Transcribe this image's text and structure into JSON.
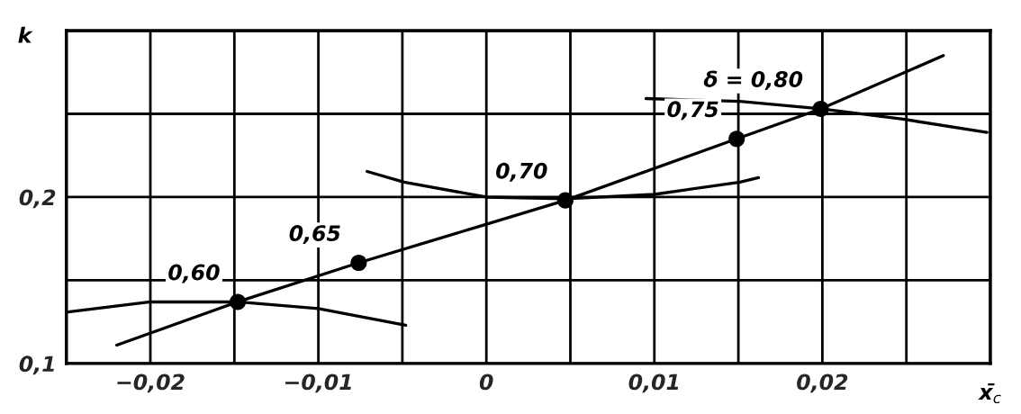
{
  "chart_data": {
    "type": "line",
    "xlabel": "x̄$_{c}$",
    "ylabel": "k",
    "xlim": [
      -0.025,
      0.03
    ],
    "ylim": [
      0.1,
      0.3
    ],
    "xticks": [
      {
        "value": -0.025,
        "label": null
      },
      {
        "value": -0.02,
        "label": "−0,02"
      },
      {
        "value": -0.015,
        "label": null
      },
      {
        "value": -0.01,
        "label": "−0,01"
      },
      {
        "value": -0.005,
        "label": null
      },
      {
        "value": 0,
        "label": "0"
      },
      {
        "value": 0.005,
        "label": null
      },
      {
        "value": 0.01,
        "label": "0,01"
      },
      {
        "value": 0.015,
        "label": null
      },
      {
        "value": 0.02,
        "label": "0,02"
      },
      {
        "value": 0.025,
        "label": null
      },
      {
        "value": 0.03,
        "label": null
      }
    ],
    "yticks": [
      {
        "value": 0.1,
        "label": "0,1"
      },
      {
        "value": 0.15,
        "label": null
      },
      {
        "value": 0.2,
        "label": "0,2"
      },
      {
        "value": 0.25,
        "label": null
      },
      {
        "value": 0.3,
        "label": null
      }
    ],
    "grid": true,
    "series": [
      {
        "color": "#000000",
        "x": [
          -0.022,
          -0.0148,
          -0.0076,
          0.0047,
          0.0149,
          0.0199,
          0.0272
        ],
        "values": [
          0.111,
          0.137,
          0.1605,
          0.198,
          0.235,
          0.253,
          0.285
        ]
      },
      {
        "color": "#000000",
        "x": [
          -0.0249,
          -0.02,
          -0.0148,
          -0.01,
          -0.0048
        ],
        "values": [
          0.131,
          0.137,
          0.137,
          0.133,
          0.123
        ]
      },
      {
        "color": "#000000",
        "x": [
          -0.0071,
          -0.0049,
          0,
          0.0047,
          0.01,
          0.0151,
          0.0162
        ],
        "values": [
          0.2154,
          0.209,
          0.2,
          0.199,
          0.2016,
          0.209,
          0.2117
        ]
      },
      {
        "color": "#000000",
        "x": [
          0.0095,
          0.0151,
          0.0199,
          0.0248,
          0.0298
        ],
        "values": [
          0.2592,
          0.2575,
          0.253,
          0.2468,
          0.2389
        ]
      },
      {
        "type": "scatter",
        "color": "#000000",
        "marker": "circle",
        "x": [
          -0.0148,
          -0.0076,
          0.0047,
          0.0149,
          0.0199
        ],
        "values": [
          0.137,
          0.1605,
          0.198,
          0.235,
          0.253
        ]
      }
    ],
    "annotations": [
      {
        "text": "0,60",
        "x": -0.0148,
        "y": 0.137
      },
      {
        "text": "0,65",
        "x": -0.0076,
        "y": 0.1605
      },
      {
        "text": "0,70",
        "x": 0.0047,
        "y": 0.198
      },
      {
        "text": "0,75",
        "x": 0.0149,
        "y": 0.235
      },
      {
        "text": "δ = 0,80",
        "x": 0.0199,
        "y": 0.253
      }
    ]
  }
}
